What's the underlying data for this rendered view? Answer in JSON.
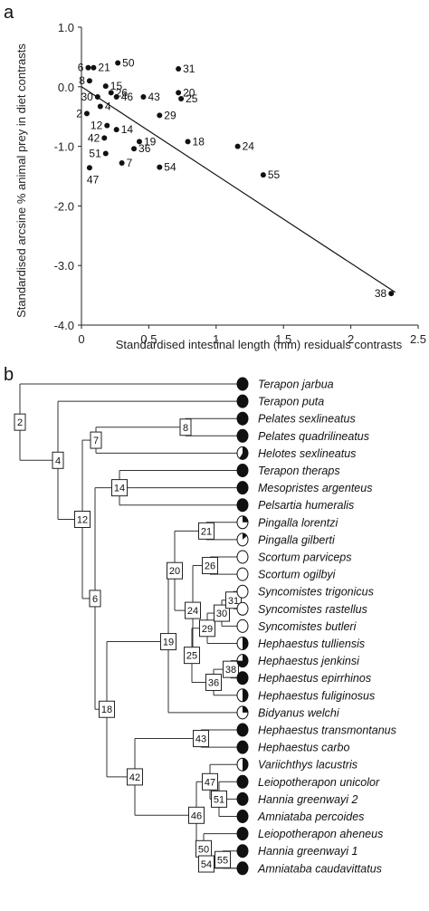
{
  "panels": {
    "a": "a",
    "b": "b"
  },
  "chart_data": {
    "type": "scatter",
    "xlabel": "Standardised intestinal length (mm) residuals contrasts",
    "ylabel": "Standardised arcsine % animal prey in diet contrasts",
    "xlim": [
      0,
      2.5
    ],
    "ylim": [
      -4.0,
      1.0
    ],
    "xticks": [
      "0",
      "0.5",
      "1",
      "1.5",
      "2",
      "2.5"
    ],
    "yticks": [
      "1.0",
      "0.0",
      "-1.0",
      "-2.0",
      "-3.0",
      "-4.0"
    ],
    "xtick_values": [
      0,
      0.5,
      1,
      1.5,
      2,
      2.5
    ],
    "ytick_values": [
      1.0,
      0.0,
      -1.0,
      -2.0,
      -3.0,
      -4.0
    ],
    "grid": false,
    "regression_line": {
      "x": [
        0,
        2.33
      ],
      "y": [
        0.0,
        -3.45
      ]
    },
    "points": [
      {
        "label": "6",
        "x": 0.05,
        "y": 0.32
      },
      {
        "label": "21",
        "x": 0.09,
        "y": 0.32
      },
      {
        "label": "50",
        "x": 0.27,
        "y": 0.4
      },
      {
        "label": "31",
        "x": 0.72,
        "y": 0.3
      },
      {
        "label": "8",
        "x": 0.06,
        "y": 0.1
      },
      {
        "label": "15",
        "x": 0.18,
        "y": 0.01
      },
      {
        "label": "26",
        "x": 0.22,
        "y": -0.1
      },
      {
        "label": "20",
        "x": 0.72,
        "y": -0.1
      },
      {
        "label": "30",
        "x": 0.12,
        "y": -0.17
      },
      {
        "label": "46",
        "x": 0.26,
        "y": -0.17
      },
      {
        "label": "43",
        "x": 0.46,
        "y": -0.17
      },
      {
        "label": "25",
        "x": 0.74,
        "y": -0.2
      },
      {
        "label": "4",
        "x": 0.14,
        "y": -0.33
      },
      {
        "label": "2",
        "x": 0.04,
        "y": -0.45
      },
      {
        "label": "29",
        "x": 0.58,
        "y": -0.48
      },
      {
        "label": "12",
        "x": 0.19,
        "y": -0.65
      },
      {
        "label": "14",
        "x": 0.26,
        "y": -0.72
      },
      {
        "label": "42",
        "x": 0.17,
        "y": -0.86
      },
      {
        "label": "19",
        "x": 0.43,
        "y": -0.92
      },
      {
        "label": "18",
        "x": 0.79,
        "y": -0.92
      },
      {
        "label": "36",
        "x": 0.39,
        "y": -1.04
      },
      {
        "label": "24",
        "x": 1.16,
        "y": -1.0
      },
      {
        "label": "51",
        "x": 0.18,
        "y": -1.12
      },
      {
        "label": "7",
        "x": 0.3,
        "y": -1.28
      },
      {
        "label": "54",
        "x": 0.58,
        "y": -1.35
      },
      {
        "label": "47",
        "x": 0.06,
        "y": -1.36
      },
      {
        "label": "55",
        "x": 1.35,
        "y": -1.48
      },
      {
        "label": "38",
        "x": 2.3,
        "y": -3.47
      }
    ]
  },
  "tree": {
    "taxa": [
      {
        "name": "Terapon jarbua",
        "fill": 1.0
      },
      {
        "name": "Terapon puta",
        "fill": 1.0
      },
      {
        "name": "Pelates sexlineatus",
        "fill": 1.0
      },
      {
        "name": "Pelates quadrilineatus",
        "fill": 1.0
      },
      {
        "name": "Helotes sexlineatus",
        "fill": 0.6
      },
      {
        "name": "Terapon theraps",
        "fill": 1.0
      },
      {
        "name": "Mesopristes argenteus",
        "fill": 1.0
      },
      {
        "name": "Pelsartia humeralis",
        "fill": 1.0
      },
      {
        "name": "Pingalla lorentzi",
        "fill": 0.25
      },
      {
        "name": "Pingalla gilberti",
        "fill": 0.15
      },
      {
        "name": "Scortum parviceps",
        "fill": 0.0
      },
      {
        "name": "Scortum ogilbyi",
        "fill": 0.0
      },
      {
        "name": "Syncomistes trigonicus",
        "fill": 0.0
      },
      {
        "name": "Syncomistes rastellus",
        "fill": 0.0
      },
      {
        "name": "Syncomistes butleri",
        "fill": 0.0
      },
      {
        "name": "Hephaestus tulliensis",
        "fill": 0.5
      },
      {
        "name": "Hephaestus jenkinsi",
        "fill": 0.75
      },
      {
        "name": "Hephaestus epirrhinos",
        "fill": 1.0
      },
      {
        "name": "Hephaestus fuliginosus",
        "fill": 0.5
      },
      {
        "name": "Bidyanus welchi",
        "fill": 0.25
      },
      {
        "name": "Hephaestus transmontanus",
        "fill": 1.0
      },
      {
        "name": "Hephaestus carbo",
        "fill": 1.0
      },
      {
        "name": "Variichthys lacustris",
        "fill": 0.5
      },
      {
        "name": "Leiopotherapon unicolor",
        "fill": 1.0
      },
      {
        "name": "Hannia greenwayi 2",
        "fill": 1.0
      },
      {
        "name": "Amniataba percoides",
        "fill": 1.0
      },
      {
        "name": "Leiopotherapon aheneus",
        "fill": 1.0
      },
      {
        "name": "Hannia greenwayi 1",
        "fill": 1.0
      },
      {
        "name": "Amniataba caudavittatus",
        "fill": 1.0
      }
    ],
    "nodes": [
      {
        "label": "2",
        "children": [
          "t0",
          "n4"
        ]
      },
      {
        "label": "4",
        "children": [
          "t1",
          "n12"
        ]
      },
      {
        "label": "12",
        "children": [
          "n7",
          "n6"
        ]
      },
      {
        "label": "7",
        "children": [
          "n8",
          "t4"
        ]
      },
      {
        "label": "8",
        "children": [
          "t2",
          "t3"
        ]
      },
      {
        "label": "6",
        "children": [
          "n14",
          "n18"
        ]
      },
      {
        "label": "14",
        "children": [
          "t5",
          "t6",
          "t7"
        ]
      },
      {
        "label": "18",
        "children": [
          "n19",
          "n42"
        ]
      },
      {
        "label": "19",
        "children": [
          "n20",
          "t19"
        ]
      },
      {
        "label": "20",
        "children": [
          "n21",
          "n24"
        ]
      },
      {
        "label": "21",
        "children": [
          "t8",
          "t9"
        ]
      },
      {
        "label": "24",
        "children": [
          "n26",
          "n25"
        ]
      },
      {
        "label": "26",
        "children": [
          "t10",
          "t11"
        ]
      },
      {
        "label": "25",
        "children": [
          "n29",
          "n36"
        ]
      },
      {
        "label": "29",
        "children": [
          "n30",
          "t15"
        ]
      },
      {
        "label": "30",
        "children": [
          "n31",
          "t14"
        ]
      },
      {
        "label": "31",
        "children": [
          "t12",
          "t13"
        ]
      },
      {
        "label": "36",
        "children": [
          "n38",
          "t18"
        ]
      },
      {
        "label": "38",
        "children": [
          "t16",
          "t17"
        ]
      },
      {
        "label": "42",
        "children": [
          "n43",
          "n46"
        ]
      },
      {
        "label": "43",
        "children": [
          "t20",
          "t21"
        ]
      },
      {
        "label": "46",
        "children": [
          "n47",
          "n50"
        ]
      },
      {
        "label": "47",
        "children": [
          "t22",
          "n51"
        ]
      },
      {
        "label": "51",
        "children": [
          "t23",
          "t24",
          "t25"
        ]
      },
      {
        "label": "50",
        "children": [
          "t26",
          "n54"
        ]
      },
      {
        "label": "54",
        "children": [
          "n55",
          "t28"
        ]
      },
      {
        "label": "55",
        "children": [
          "t27",
          "t28"
        ]
      }
    ]
  }
}
